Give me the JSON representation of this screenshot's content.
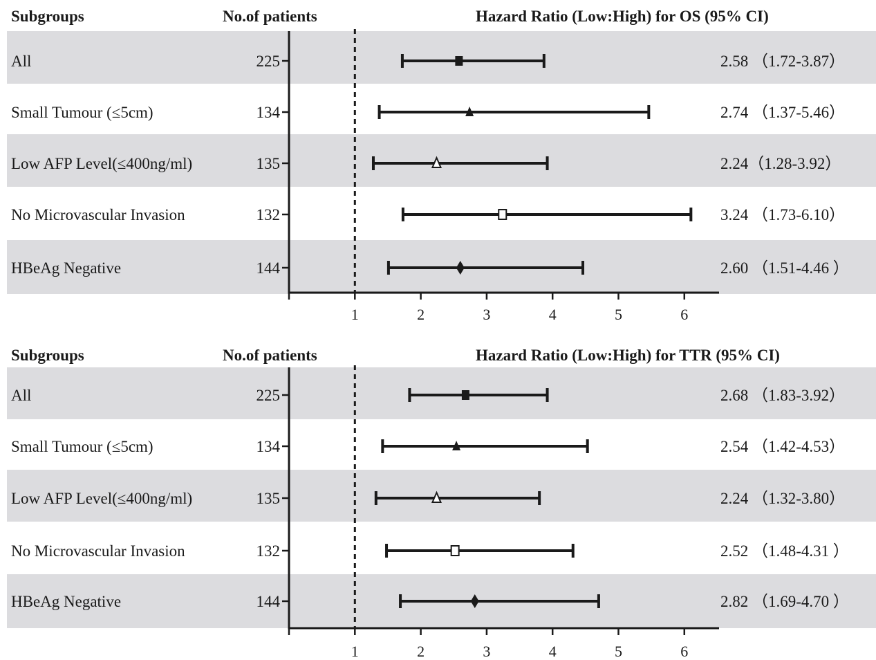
{
  "columns": {
    "subgroups": "Subgroups",
    "patients": "No.of patients"
  },
  "chart_data": [
    {
      "type": "forest",
      "title": "Hazard Ratio (Low:High) for OS (95% CI)",
      "xlim": [
        0,
        6.5
      ],
      "xticks": [
        1,
        2,
        3,
        4,
        5,
        6
      ],
      "reference_line": 1,
      "rows": [
        {
          "label": "All",
          "n": "225",
          "hr": 2.58,
          "low": 1.72,
          "high": 3.87,
          "marker": "filled-square",
          "text": "2.58 （1.72-3.87）"
        },
        {
          "label": "Small Tumour (≤5cm)",
          "n": "134",
          "hr": 2.74,
          "low": 1.37,
          "high": 5.46,
          "marker": "filled-triangle",
          "text": "2.74 （1.37-5.46）"
        },
        {
          "label": "Low AFP Level(≤400ng/ml)",
          "n": "135",
          "hr": 2.24,
          "low": 1.28,
          "high": 3.92,
          "marker": "open-triangle",
          "text": "2.24（1.28-3.92）"
        },
        {
          "label": "No Microvascular Invasion",
          "n": "132",
          "hr": 3.24,
          "low": 1.73,
          "high": 6.1,
          "marker": "open-square",
          "text": "3.24 （1.73-6.10）"
        },
        {
          "label": "HBeAg Negative",
          "n": "144",
          "hr": 2.6,
          "low": 1.51,
          "high": 4.46,
          "marker": "filled-diamond",
          "text": "2.60 （1.51-4.46 ）"
        }
      ]
    },
    {
      "type": "forest",
      "title": "Hazard Ratio (Low:High) for TTR (95% CI)",
      "xlim": [
        0,
        6.5
      ],
      "xticks": [
        1,
        2,
        3,
        4,
        5,
        6
      ],
      "reference_line": 1,
      "rows": [
        {
          "label": "All",
          "n": "225",
          "hr": 2.68,
          "low": 1.83,
          "high": 3.92,
          "marker": "filled-square",
          "text": "2.68 （1.83-3.92）"
        },
        {
          "label": "Small Tumour (≤5cm)",
          "n": "134",
          "hr": 2.54,
          "low": 1.42,
          "high": 4.53,
          "marker": "filled-triangle",
          "text": "2.54 （1.42-4.53）"
        },
        {
          "label": "Low AFP Level(≤400ng/ml)",
          "n": "135",
          "hr": 2.24,
          "low": 1.32,
          "high": 3.8,
          "marker": "open-triangle",
          "text": "2.24 （1.32-3.80）"
        },
        {
          "label": "No Microvascular Invasion",
          "n": "132",
          "hr": 2.52,
          "low": 1.48,
          "high": 4.31,
          "marker": "open-square",
          "text": "2.52 （1.48-4.31 ）"
        },
        {
          "label": "HBeAg Negative",
          "n": "144",
          "hr": 2.82,
          "low": 1.69,
          "high": 4.7,
          "marker": "filled-diamond",
          "text": "2.82 （1.69-4.70 ）"
        }
      ]
    }
  ],
  "colors": {
    "band": "#dcdcdf",
    "ink": "#1a1a1a"
  }
}
